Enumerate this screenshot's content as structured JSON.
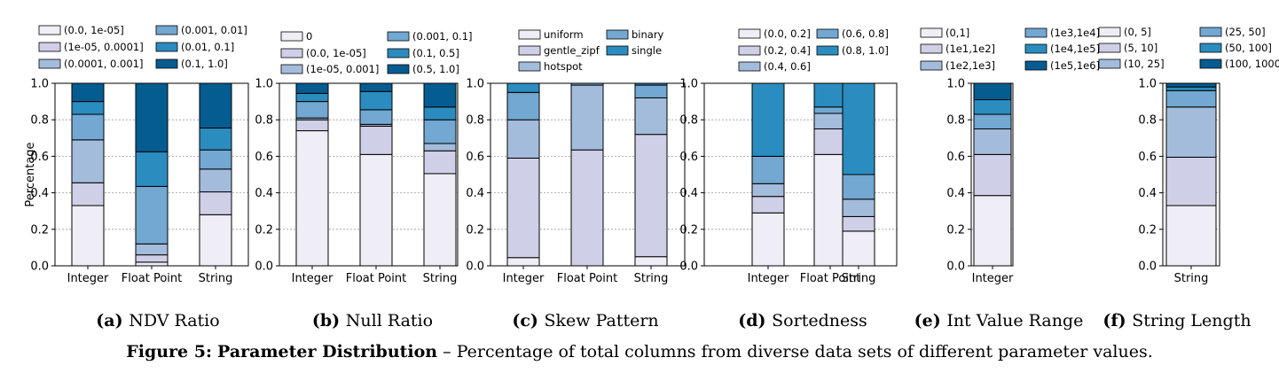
{
  "colors": {
    "c0": "#efeef6",
    "c1": "#cfcfe7",
    "c2": "#a4bcdc",
    "c3": "#72a8d2",
    "c4": "#2b8cbf",
    "c5": "#045c91"
  },
  "y_axis_label": "Percentage",
  "caption": {
    "label": "Figure 5:",
    "bold": "Parameter Distribution",
    "rest": " – Percentage of total columns from diverse data sets of different parameter values."
  },
  "chart_data": [
    {
      "id": "a",
      "type": "bar",
      "stacked": true,
      "subtitle_label": "(a)",
      "subtitle": "NDV Ratio",
      "categories": [
        "Integer",
        "Float Point",
        "String"
      ],
      "ylim": [
        0,
        1.0
      ],
      "yticks": [
        "0.0",
        "0.2",
        "0.4",
        "0.6",
        "0.8",
        "1.0"
      ],
      "grid": true,
      "series": [
        {
          "name": "(0.0, 1e-05]",
          "color": "c0",
          "values": [
            0.33,
            0.02,
            0.28
          ]
        },
        {
          "name": "(1e-05, 0.0001]",
          "color": "c1",
          "values": [
            0.125,
            0.04,
            0.125
          ]
        },
        {
          "name": "(0.0001, 0.001]",
          "color": "c2",
          "values": [
            0.235,
            0.06,
            0.125
          ]
        },
        {
          "name": "(0.001, 0.01]",
          "color": "c3",
          "values": [
            0.14,
            0.315,
            0.105
          ]
        },
        {
          "name": "(0.01, 0.1]",
          "color": "c4",
          "values": [
            0.07,
            0.19,
            0.12
          ]
        },
        {
          "name": "(0.1, 1.0]",
          "color": "c5",
          "values": [
            0.1,
            0.375,
            0.245
          ]
        }
      ]
    },
    {
      "id": "b",
      "type": "bar",
      "stacked": true,
      "subtitle_label": "(b)",
      "subtitle": "Null Ratio",
      "categories": [
        "Integer",
        "Float Point",
        "String"
      ],
      "ylim": [
        0,
        1.0
      ],
      "yticks": [
        "0.0",
        "0.2",
        "0.4",
        "0.6",
        "0.8",
        "1.0"
      ],
      "grid": true,
      "series": [
        {
          "name": "0",
          "color": "c0",
          "values": [
            0.74,
            0.61,
            0.505
          ]
        },
        {
          "name": "(0.0, 1e-05]",
          "color": "c1",
          "values": [
            0.06,
            0.155,
            0.125
          ]
        },
        {
          "name": "(1e-05, 0.001]",
          "color": "c2",
          "values": [
            0.01,
            0.01,
            0.04
          ]
        },
        {
          "name": "(0.001, 0.1]",
          "color": "c3",
          "values": [
            0.09,
            0.08,
            0.13
          ]
        },
        {
          "name": "(0.1, 0.5]",
          "color": "c4",
          "values": [
            0.045,
            0.1,
            0.07
          ]
        },
        {
          "name": "(0.5, 1.0]",
          "color": "c5",
          "values": [
            0.055,
            0.045,
            0.13
          ]
        }
      ]
    },
    {
      "id": "c",
      "type": "bar",
      "stacked": true,
      "subtitle_label": "(c)",
      "subtitle": "Skew Pattern",
      "categories": [
        "Integer",
        "Float Point",
        "String"
      ],
      "ylim": [
        0,
        1.0
      ],
      "yticks": [
        "0.0",
        "0.2",
        "0.4",
        "0.6",
        "0.8",
        "1.0"
      ],
      "grid": true,
      "series": [
        {
          "name": "uniform",
          "color": "c0",
          "values": [
            0.045,
            0.0,
            0.05
          ]
        },
        {
          "name": "gentle_zipf",
          "color": "c1",
          "values": [
            0.545,
            0.635,
            0.67
          ]
        },
        {
          "name": "hotspot",
          "color": "c2",
          "values": [
            0.21,
            0.355,
            0.2
          ]
        },
        {
          "name": "binary",
          "color": "c3",
          "values": [
            0.15,
            0.01,
            0.07
          ]
        },
        {
          "name": "single",
          "color": "c4",
          "values": [
            0.05,
            0.0,
            0.01
          ]
        }
      ]
    },
    {
      "id": "d",
      "type": "bar",
      "stacked": true,
      "subtitle_label": "(d)",
      "subtitle": "Sortedness",
      "categories": [
        "Integer",
        "Float Point",
        "String"
      ],
      "ylim": [
        0,
        1.0
      ],
      "yticks": [
        "0.0",
        "0.2",
        "0.4",
        "0.6",
        "0.8",
        "1.0"
      ],
      "grid": true,
      "series": [
        {
          "name": "(0.0, 0.2]",
          "color": "c0",
          "values": [
            0.29,
            0.61,
            0.19
          ]
        },
        {
          "name": "(0.2, 0.4]",
          "color": "c1",
          "values": [
            0.09,
            0.14,
            0.08
          ]
        },
        {
          "name": "(0.4, 0.6]",
          "color": "c2",
          "values": [
            0.07,
            0.085,
            0.095
          ]
        },
        {
          "name": "(0.6, 0.8]",
          "color": "c3",
          "values": [
            0.15,
            0.035,
            0.135
          ]
        },
        {
          "name": "(0.8, 1.0]",
          "color": "c4",
          "values": [
            0.4,
            0.13,
            0.5
          ]
        }
      ]
    },
    {
      "id": "e",
      "type": "bar",
      "stacked": true,
      "subtitle_label": "(e)",
      "subtitle": "Int Value Range",
      "categories": [
        "Integer"
      ],
      "ylim": [
        0,
        1.0
      ],
      "yticks": [
        "0.0",
        "0.2",
        "0.4",
        "0.6",
        "0.8",
        "1.0"
      ],
      "grid": true,
      "series": [
        {
          "name": "(0,1]",
          "color": "c0",
          "values": [
            0.385
          ]
        },
        {
          "name": "(1e1,1e2]",
          "color": "c1",
          "values": [
            0.225
          ]
        },
        {
          "name": "(1e2,1e3]",
          "color": "c2",
          "values": [
            0.14
          ]
        },
        {
          "name": "(1e3,1e4]",
          "color": "c3",
          "values": [
            0.08
          ]
        },
        {
          "name": "(1e4,1e5]",
          "color": "c4",
          "values": [
            0.08
          ]
        },
        {
          "name": "(1e5,1e6]",
          "color": "c5",
          "values": [
            0.09
          ]
        }
      ]
    },
    {
      "id": "f",
      "type": "bar",
      "stacked": true,
      "subtitle_label": "(f)",
      "subtitle": "String Length",
      "categories": [
        "String"
      ],
      "ylim": [
        0,
        1.0
      ],
      "yticks": [
        "0.0",
        "0.2",
        "0.4",
        "0.6",
        "0.8",
        "1.0"
      ],
      "grid": true,
      "series": [
        {
          "name": "(0, 5]",
          "color": "c0",
          "values": [
            0.33
          ]
        },
        {
          "name": "(5, 10]",
          "color": "c1",
          "values": [
            0.265
          ]
        },
        {
          "name": "(10, 25]",
          "color": "c2",
          "values": [
            0.275
          ]
        },
        {
          "name": "(25, 50]",
          "color": "c3",
          "values": [
            0.09
          ]
        },
        {
          "name": "(50, 100]",
          "color": "c4",
          "values": [
            0.02
          ]
        },
        {
          "name": "(100, 1000]",
          "color": "c5",
          "values": [
            0.02
          ]
        }
      ]
    }
  ]
}
